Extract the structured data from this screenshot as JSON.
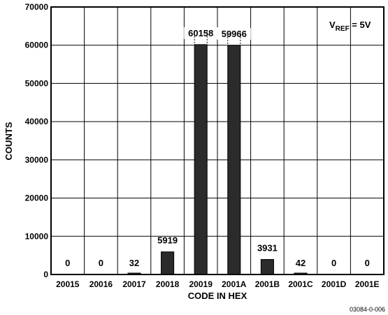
{
  "chart_data": {
    "type": "bar",
    "xlabel": "CODE IN HEX",
    "ylabel": "COUNTS",
    "ylim": [
      0,
      70000
    ],
    "yticks": [
      0,
      10000,
      20000,
      30000,
      40000,
      50000,
      60000,
      70000
    ],
    "categories": [
      "20015",
      "20016",
      "20017",
      "20018",
      "20019",
      "2001A",
      "2001B",
      "2001C",
      "2001D",
      "2001E"
    ],
    "values": [
      0,
      0,
      32,
      5919,
      60158,
      59966,
      3931,
      42,
      0,
      0
    ],
    "data_labels": [
      "0",
      "0",
      "32",
      "5919",
      "60158",
      "59966",
      "3931",
      "42",
      "0",
      "0"
    ],
    "annotation": {
      "main": "V",
      "sub": "REF",
      "rest": " = 5V"
    },
    "grid": true,
    "bar_color": "#2b2b2b"
  },
  "figure_id": "03084-0-006"
}
